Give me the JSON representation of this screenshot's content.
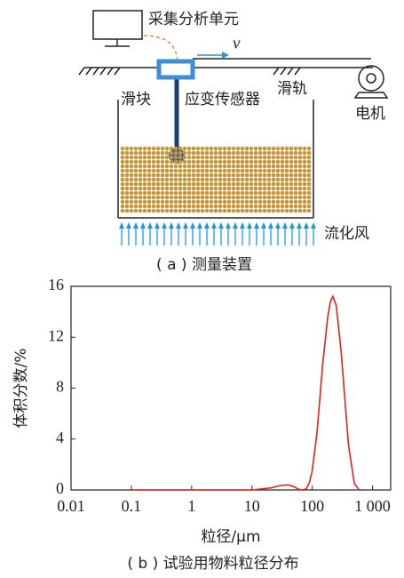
{
  "diagram": {
    "unit": "采集分析单元",
    "velocity": "v",
    "slider": "滑块",
    "sensor": "应变传感器",
    "rail": "滑轨",
    "motor": "电机",
    "wind": "流化风",
    "caption": "( a ) 测量装置"
  },
  "chart_data": {
    "type": "line",
    "caption": "( b ) 试验用物料粒径分布",
    "xlabel": "粒径/μm",
    "ylabel": "体积分数/%",
    "x": [
      0.1,
      1,
      10,
      20,
      30,
      40,
      50,
      60,
      70,
      80,
      90,
      100,
      120,
      150,
      180,
      200,
      220,
      250,
      300,
      350,
      400,
      500,
      600
    ],
    "values": [
      0,
      0,
      0,
      0.15,
      0.35,
      0.4,
      0.25,
      0.05,
      0,
      0.1,
      0.6,
      1.5,
      4.5,
      10,
      13.5,
      14.8,
      15.2,
      14.5,
      11,
      7,
      3.5,
      0.5,
      0
    ],
    "color": "#e0201b",
    "xscale": "log",
    "xlim": [
      0.01,
      2000
    ],
    "xticks": [
      0.01,
      0.1,
      1,
      10,
      100,
      {
        "value": 1000,
        "label": "1 000"
      }
    ],
    "ylim": [
      0,
      16
    ],
    "yticks": [
      0,
      4,
      8,
      12,
      16
    ]
  }
}
